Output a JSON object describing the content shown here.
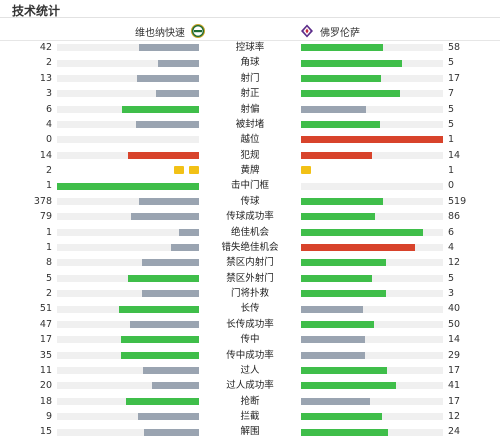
{
  "title": "技术统计",
  "home_team": {
    "name": "维也纳快速",
    "crest_icon": "rapid-wien-crest-icon"
  },
  "away_team": {
    "name": "佛罗伦萨",
    "crest_icon": "fiorentina-crest-icon"
  },
  "colors": {
    "green": "#3fbe4a",
    "gray": "#9aa4b1",
    "red": "#d8432b",
    "card_yellow": "#f2c116",
    "track": "#f0f0f0"
  },
  "stats": [
    {
      "label": "控球率",
      "home": "42",
      "away": "58",
      "home_val": 42,
      "away_val": 58,
      "home_color": "gray",
      "away_color": "green"
    },
    {
      "label": "角球",
      "home": "2",
      "away": "5",
      "home_val": 2,
      "away_val": 5,
      "home_color": "gray",
      "away_color": "green"
    },
    {
      "label": "射门",
      "home": "13",
      "away": "17",
      "home_val": 13,
      "away_val": 17,
      "home_color": "gray",
      "away_color": "green"
    },
    {
      "label": "射正",
      "home": "3",
      "away": "7",
      "home_val": 3,
      "away_val": 7,
      "home_color": "gray",
      "away_color": "green"
    },
    {
      "label": "射偏",
      "home": "6",
      "away": "5",
      "home_val": 6,
      "away_val": 5,
      "home_color": "green",
      "away_color": "gray"
    },
    {
      "label": "被封堵",
      "home": "4",
      "away": "5",
      "home_val": 4,
      "away_val": 5,
      "home_color": "gray",
      "away_color": "green"
    },
    {
      "label": "越位",
      "home": "0",
      "away": "1",
      "home_val": 0,
      "away_val": 1,
      "home_color": "red",
      "away_color": "red"
    },
    {
      "label": "犯规",
      "home": "14",
      "away": "14",
      "home_val": 14,
      "away_val": 14,
      "home_color": "red",
      "away_color": "red"
    },
    {
      "label": "黄牌",
      "home": "2",
      "away": "1",
      "home_val": 2,
      "away_val": 1,
      "type": "cards"
    },
    {
      "label": "击中门框",
      "home": "1",
      "away": "0",
      "home_val": 1,
      "away_val": 0,
      "home_color": "green",
      "away_color": "gray"
    },
    {
      "label": "传球",
      "home": "378",
      "away": "519",
      "home_val": 378,
      "away_val": 519,
      "home_color": "gray",
      "away_color": "green"
    },
    {
      "label": "传球成功率",
      "home": "79",
      "away": "86",
      "home_val": 79,
      "away_val": 86,
      "home_color": "gray",
      "away_color": "green"
    },
    {
      "label": "绝佳机会",
      "home": "1",
      "away": "6",
      "home_val": 1,
      "away_val": 6,
      "home_color": "gray",
      "away_color": "green"
    },
    {
      "label": "错失绝佳机会",
      "home": "1",
      "away": "4",
      "home_val": 1,
      "away_val": 4,
      "home_color": "gray",
      "away_color": "red"
    },
    {
      "label": "禁区内射门",
      "home": "8",
      "away": "12",
      "home_val": 8,
      "away_val": 12,
      "home_color": "gray",
      "away_color": "green"
    },
    {
      "label": "禁区外射门",
      "home": "5",
      "away": "5",
      "home_val": 5,
      "away_val": 5,
      "home_color": "green",
      "away_color": "green"
    },
    {
      "label": "门将扑救",
      "home": "2",
      "away": "3",
      "home_val": 2,
      "away_val": 3,
      "home_color": "gray",
      "away_color": "green"
    },
    {
      "label": "长传",
      "home": "51",
      "away": "40",
      "home_val": 51,
      "away_val": 40,
      "home_color": "green",
      "away_color": "gray"
    },
    {
      "label": "长传成功率",
      "home": "47",
      "away": "50",
      "home_val": 47,
      "away_val": 50,
      "home_color": "gray",
      "away_color": "green"
    },
    {
      "label": "传中",
      "home": "17",
      "away": "14",
      "home_val": 17,
      "away_val": 14,
      "home_color": "green",
      "away_color": "gray"
    },
    {
      "label": "传中成功率",
      "home": "35",
      "away": "29",
      "home_val": 35,
      "away_val": 29,
      "home_color": "green",
      "away_color": "gray"
    },
    {
      "label": "过人",
      "home": "11",
      "away": "17",
      "home_val": 11,
      "away_val": 17,
      "home_color": "gray",
      "away_color": "green"
    },
    {
      "label": "过人成功率",
      "home": "20",
      "away": "41",
      "home_val": 20,
      "away_val": 41,
      "home_color": "gray",
      "away_color": "green"
    },
    {
      "label": "抢断",
      "home": "18",
      "away": "17",
      "home_val": 18,
      "away_val": 17,
      "home_color": "green",
      "away_color": "gray"
    },
    {
      "label": "拦截",
      "home": "9",
      "away": "12",
      "home_val": 9,
      "away_val": 12,
      "home_color": "gray",
      "away_color": "green"
    },
    {
      "label": "解围",
      "home": "15",
      "away": "24",
      "home_val": 15,
      "away_val": 24,
      "home_color": "gray",
      "away_color": "green"
    }
  ]
}
